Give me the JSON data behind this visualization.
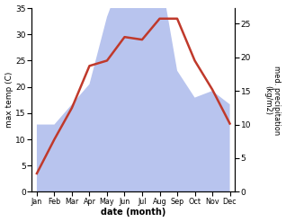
{
  "months": [
    "Jan",
    "Feb",
    "Mar",
    "Apr",
    "May",
    "Jun",
    "Jul",
    "Aug",
    "Sep",
    "Oct",
    "Nov",
    "Dec"
  ],
  "month_indices": [
    0,
    1,
    2,
    3,
    4,
    5,
    6,
    7,
    8,
    9,
    10,
    11
  ],
  "temp": [
    3.5,
    10,
    16,
    24,
    25,
    29.5,
    29,
    33,
    33,
    25,
    19.5,
    13
  ],
  "precip": [
    10,
    10,
    13,
    16,
    26,
    33,
    28,
    33,
    18,
    14,
    15,
    13
  ],
  "temp_ylim": [
    0,
    35
  ],
  "precip_ylim": [
    0,
    27.3
  ],
  "precip_yticks": [
    0,
    5,
    10,
    15,
    20,
    25
  ],
  "temp_yticks": [
    0,
    5,
    10,
    15,
    20,
    25,
    30,
    35
  ],
  "temp_color": "#c0392b",
  "precip_color": "#b8c4ee",
  "xlabel": "date (month)",
  "ylabel_left": "max temp (C)",
  "ylabel_right": "med. precipitation\n(kg/m2)",
  "fig_width": 3.18,
  "fig_height": 2.47,
  "dpi": 100
}
